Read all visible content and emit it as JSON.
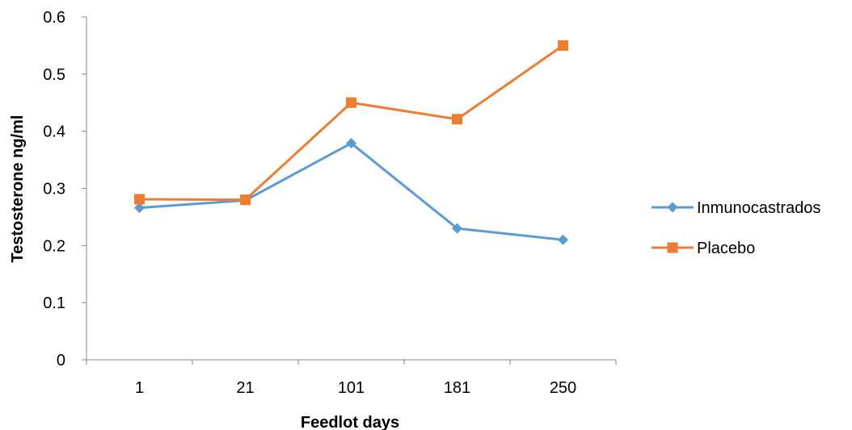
{
  "chart_data": {
    "type": "line",
    "title": "",
    "xlabel": "Feedlot days",
    "ylabel": "Testosterone ng/ml",
    "categories": [
      "1",
      "21",
      "101",
      "181",
      "250"
    ],
    "ylim": [
      0,
      0.6
    ],
    "yticks": [
      "0",
      "0.1",
      "0.2",
      "0.3",
      "0.4",
      "0.5",
      "0.6"
    ],
    "grid": false,
    "legend_position": "right",
    "series": [
      {
        "name": "Inmunocastrados",
        "values": [
          0.266,
          0.279,
          0.379,
          0.23,
          0.21
        ],
        "color": "#5B9BD5",
        "marker": "diamond"
      },
      {
        "name": "Placebo",
        "values": [
          0.281,
          0.28,
          0.45,
          0.421,
          0.55
        ],
        "color": "#ED7D31",
        "marker": "square"
      }
    ]
  }
}
